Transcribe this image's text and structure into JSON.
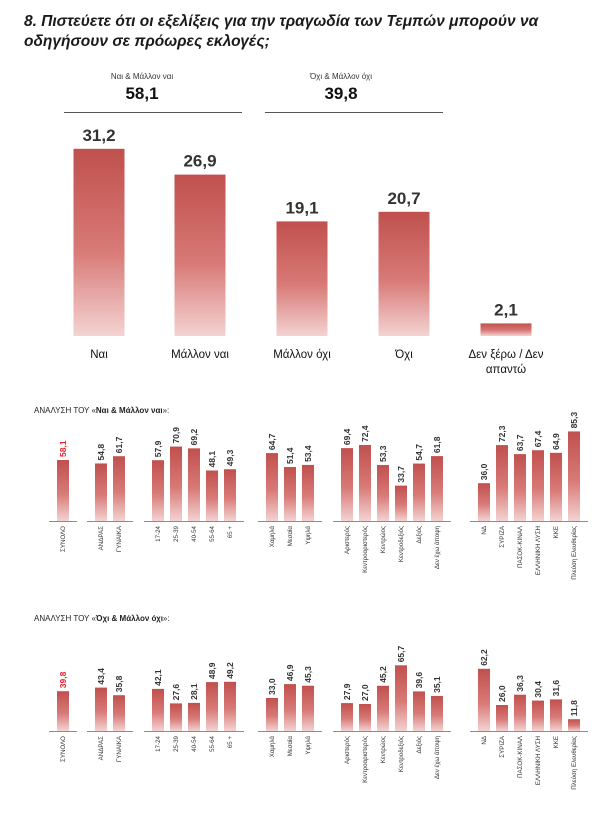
{
  "title": "8. Πιστεύετε ότι οι εξελίξεις για την τραγωδία των Τεμπών μπορούν να οδηγήσουν σε πρόωρες εκλογές;",
  "summary": [
    {
      "label": "Ναι & Μάλλον ναι",
      "value": "58,1"
    },
    {
      "label": "Όχι & Μάλλον όχι",
      "value": "39,8"
    }
  ],
  "colors": {
    "bar_top": "#c0504d",
    "bar_bottom": "#f3d3d2",
    "highlight": "#e8202a"
  },
  "chart_data": [
    {
      "type": "bar",
      "categories": [
        "Ναι",
        "Μάλλον ναι",
        "Μάλλον όχι",
        "Όχι",
        "Δεν ξέρω / Δεν απαντώ"
      ],
      "values": [
        31.2,
        26.9,
        19.1,
        20.7,
        2.1
      ],
      "value_labels": [
        "31,2",
        "26,9",
        "19,1",
        "20,7",
        "2,1"
      ],
      "category_lines": [
        [
          "Ναι"
        ],
        [
          "Μάλλον ναι"
        ],
        [
          "Μάλλον όχι"
        ],
        [
          "Όχι"
        ],
        [
          "Δεν ξέρω / Δεν",
          "απαντώ"
        ]
      ]
    },
    {
      "type": "bar",
      "title_prefix": "ΑΝΑΛΥΣΗ ΤΟΥ «",
      "title_bold": "Ναι & Μάλλον ναι",
      "title_suffix": "»:",
      "groups": [
        {
          "categories": [
            "ΣΥΝΟΛΟ"
          ],
          "values": [
            58.1
          ],
          "value_labels": [
            "58,1"
          ],
          "highlight": true
        },
        {
          "categories": [
            "ΑΝΔΡΑΣ",
            "ΓΥΝΑΙΚΑ"
          ],
          "values": [
            54.8,
            61.7
          ],
          "value_labels": [
            "54,8",
            "61,7"
          ]
        },
        {
          "categories": [
            "17-24",
            "25-39",
            "40-54",
            "55-64",
            "65 +"
          ],
          "values": [
            57.9,
            70.9,
            69.2,
            48.1,
            49.3
          ],
          "value_labels": [
            "57,9",
            "70,9",
            "69,2",
            "48,1",
            "49,3"
          ]
        },
        {
          "categories": [
            "Χαμηλά",
            "Μεσαία",
            "Υψηλά"
          ],
          "values": [
            64.7,
            51.4,
            53.4
          ],
          "value_labels": [
            "64,7",
            "51,4",
            "53,4"
          ]
        },
        {
          "categories": [
            "Αριστερός",
            "Κεντροαριστερός",
            "Κεντρώος",
            "Κεντροδεξιός",
            "Δεξιός",
            "Δεν έχω άποψη"
          ],
          "values": [
            69.4,
            72.4,
            53.3,
            33.7,
            54.7,
            61.8
          ],
          "value_labels": [
            "69,4",
            "72,4",
            "53,3",
            "33,7",
            "54,7",
            "61,8"
          ]
        },
        {
          "categories": [
            "ΝΔ",
            "ΣΥΡΙΖΑ",
            "ΠΑΣΟΚ-ΚΙΝΑΛ",
            "ΕΛΛΗΝΙΚΗ ΛΥΣΗ",
            "ΚΚΕ",
            "Πλεύση Ελευθερίας"
          ],
          "values": [
            36.0,
            72.3,
            63.7,
            67.4,
            64.9,
            85.3
          ],
          "value_labels": [
            "36,0",
            "72,3",
            "63,7",
            "67,4",
            "64,9",
            "85,3"
          ]
        }
      ]
    },
    {
      "type": "bar",
      "title_prefix": "ΑΝΑΛΥΣΗ ΤΟΥ «",
      "title_bold": "Όχι & Μάλλον όχι",
      "title_suffix": "»:",
      "groups": [
        {
          "categories": [
            "ΣΥΝΟΛΟ"
          ],
          "values": [
            39.8
          ],
          "value_labels": [
            "39,8"
          ],
          "highlight": true
        },
        {
          "categories": [
            "ΑΝΔΡΑΣ",
            "ΓΥΝΑΙΚΑ"
          ],
          "values": [
            43.4,
            35.8
          ],
          "value_labels": [
            "43,4",
            "35,8"
          ]
        },
        {
          "categories": [
            "17-24",
            "25-39",
            "40-54",
            "55-64",
            "65 +"
          ],
          "values": [
            42.1,
            27.6,
            28.1,
            48.9,
            49.2
          ],
          "value_labels": [
            "42,1",
            "27,6",
            "28,1",
            "48,9",
            "49,2"
          ]
        },
        {
          "categories": [
            "Χαμηλά",
            "Μεσαία",
            "Υψηλά"
          ],
          "values": [
            33.0,
            46.9,
            45.3
          ],
          "value_labels": [
            "33,0",
            "46,9",
            "45,3"
          ]
        },
        {
          "categories": [
            "Αριστερός",
            "Κεντροαριστερός",
            "Κεντρώος",
            "Κεντροδεξιός",
            "Δεξιός",
            "Δεν έχω άποψη"
          ],
          "values": [
            27.9,
            27.0,
            45.2,
            65.7,
            39.6,
            35.1
          ],
          "value_labels": [
            "27,9",
            "27,0",
            "45,2",
            "65,7",
            "39,6",
            "35,1"
          ]
        },
        {
          "categories": [
            "ΝΔ",
            "ΣΥΡΙΖΑ",
            "ΠΑΣΟΚ-ΚΙΝΑΛ",
            "ΕΛΛΗΝΙΚΗ ΛΥΣΗ",
            "ΚΚΕ",
            "Πλεύση Ελευθερίας"
          ],
          "values": [
            62.2,
            26.0,
            36.3,
            30.4,
            31.6,
            11.8
          ],
          "value_labels": [
            "62,2",
            "26,0",
            "36,3",
            "30,4",
            "31,6",
            "11,8"
          ]
        }
      ]
    }
  ]
}
